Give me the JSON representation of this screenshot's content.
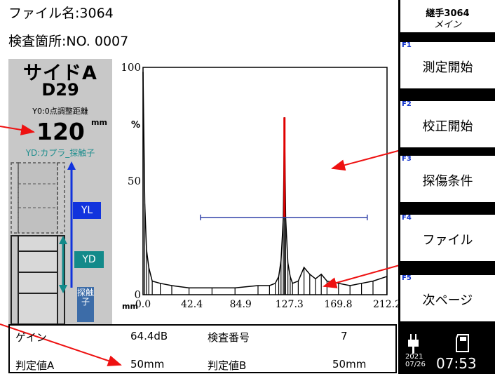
{
  "header": {
    "file_label": "ファイル名:3064",
    "location_label": "検査箇所:NO. 0007"
  },
  "left_panel": {
    "side_title": "サイドA",
    "bar_size": "D29",
    "y0_label": "Y0:0点調整距離",
    "distance_value": "120",
    "distance_unit": "mm",
    "yd_label": "YD:カプラ_探触子",
    "tag_yl": "YL",
    "tag_yd": "YD",
    "tag_probe": "探触子"
  },
  "chart_data": {
    "type": "line",
    "y_unit": "%",
    "x_unit": "mm",
    "xlim": [
      0,
      212.2
    ],
    "ylim": [
      0,
      100
    ],
    "x_ticks": [
      "0.0",
      "42.4",
      "84.9",
      "127.3",
      "169.8",
      "212.2"
    ],
    "y_ticks": [
      "0",
      "50",
      "100"
    ],
    "gate": {
      "start": 50,
      "end": 195,
      "level": 34
    },
    "series": [
      {
        "values": [
          [
            0,
            98
          ],
          [
            1.5,
            40
          ],
          [
            3,
            20
          ],
          [
            5,
            12
          ],
          [
            8,
            6
          ],
          [
            15,
            5
          ],
          [
            25,
            4
          ],
          [
            40,
            3
          ],
          [
            60,
            3
          ],
          [
            80,
            3
          ],
          [
            100,
            4
          ],
          [
            110,
            4
          ],
          [
            115,
            5
          ],
          [
            118,
            8
          ],
          [
            120,
            15
          ],
          [
            122,
            34
          ],
          [
            123,
            78
          ],
          [
            124,
            34
          ],
          [
            126,
            14
          ],
          [
            128,
            8
          ],
          [
            130,
            5
          ],
          [
            135,
            6
          ],
          [
            140,
            12
          ],
          [
            145,
            9
          ],
          [
            150,
            7
          ],
          [
            155,
            9
          ],
          [
            160,
            6
          ],
          [
            170,
            5
          ],
          [
            180,
            4
          ],
          [
            190,
            5
          ],
          [
            200,
            6
          ],
          [
            212,
            8
          ]
        ]
      }
    ]
  },
  "footer": {
    "gain_label": "ゲイン",
    "gain_value": "64.4dB",
    "inspection_label": "検査番号",
    "inspection_value": "7",
    "thresh_a_label": "判定値A",
    "thresh_a_value": "50mm",
    "thresh_b_label": "判定値B",
    "thresh_b_value": "50mm"
  },
  "softkeys": {
    "model": "継手3064",
    "mode": "メイン",
    "f1_num": "F1",
    "f1_label": "測定開始",
    "f2_num": "F2",
    "f2_label": "校正開始",
    "f3_num": "F3",
    "f3_label": "探傷条件",
    "f4_num": "F4",
    "f4_label": "ファイル",
    "f5_num": "F5",
    "f5_label": "次ページ"
  },
  "status": {
    "year": "2021",
    "date": "07/26",
    "time": "07:53"
  },
  "colors": {
    "signal": "#000000",
    "gated_signal": "#e00000",
    "gate_line": "#3344aa",
    "annotation_arrow": "#ee1111"
  }
}
